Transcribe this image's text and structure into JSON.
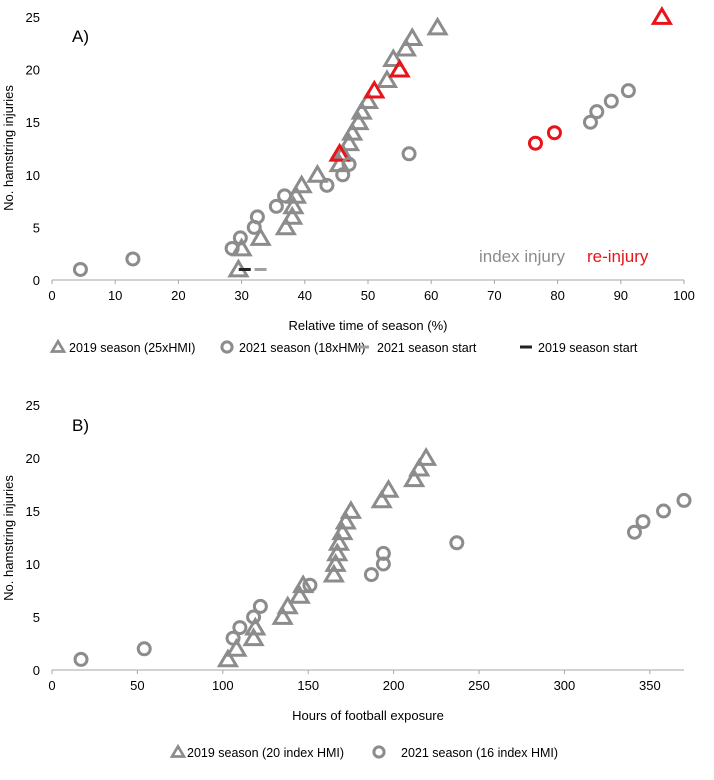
{
  "chart_data": [
    {
      "type": "scatter",
      "panel_label": "A)",
      "xlabel": "Relative time of season (%)",
      "ylabel": "No. hamstring injuries",
      "xlim": [
        0,
        100
      ],
      "ylim": [
        0,
        25
      ],
      "xticks": [
        "0",
        "10",
        "20",
        "30",
        "40",
        "50",
        "60",
        "70",
        "80",
        "90",
        "100"
      ],
      "yticks": [
        "0",
        "5",
        "10",
        "15",
        "20",
        "25"
      ],
      "annotations": {
        "index": "index injury",
        "reinjury": "re-injury"
      },
      "colors": {
        "index": "#8c8c8c",
        "reinjury": "#e8141a",
        "start2021": "#a0a0a0",
        "start2019": "#222222"
      },
      "series": [
        {
          "name": "2019 season (25xHMI)",
          "marker": "triangle",
          "color": "#8c8c8c",
          "x": [
            29.5,
            30,
            33,
            37,
            38,
            38.2,
            38.6,
            39.5,
            42,
            45.5,
            46,
            47,
            47.5,
            48.5,
            49,
            50,
            53,
            54,
            56,
            57,
            61
          ],
          "y": [
            1,
            3,
            4,
            5,
            6,
            7,
            8,
            9,
            10,
            11,
            12,
            13,
            14,
            15,
            16,
            17,
            19,
            21,
            22,
            23,
            24
          ]
        },
        {
          "name": "2019 re-injury",
          "marker": "triangle",
          "color": "#e8141a",
          "x": [
            45.5,
            51,
            55,
            96.5
          ],
          "y": [
            12,
            18,
            20,
            25
          ]
        },
        {
          "name": "2021 season (18xHMI)",
          "marker": "circle",
          "color": "#8c8c8c",
          "x": [
            4.5,
            12.8,
            28.5,
            29.8,
            32,
            32.5,
            35.5,
            36.8,
            43.5,
            46,
            47,
            56.5,
            85.2,
            86.2,
            88.5,
            91.2
          ],
          "y": [
            1,
            2,
            3,
            4,
            5,
            6,
            7,
            8,
            9,
            10,
            11,
            12,
            15,
            16,
            17,
            18
          ]
        },
        {
          "name": "2021 re-injury",
          "marker": "circle",
          "color": "#e8141a",
          "x": [
            76.5,
            79.5
          ],
          "y": [
            13,
            14
          ]
        },
        {
          "name": "2021 season start",
          "marker": "dash",
          "color": "#a0a0a0",
          "x": [
            33
          ],
          "y": [
            1
          ]
        },
        {
          "name": "2019 season start",
          "marker": "dash",
          "color": "#222222",
          "x": [
            30.5
          ],
          "y": [
            1
          ]
        }
      ],
      "legend": [
        {
          "marker": "triangle",
          "label": "2019 season (25xHMI)"
        },
        {
          "marker": "circle",
          "label": "2021 season (18xHMI)"
        },
        {
          "marker": "dash-grey",
          "label": "2021 season start"
        },
        {
          "marker": "dash-black",
          "label": "2019 season start"
        }
      ]
    },
    {
      "type": "scatter",
      "panel_label": "B)",
      "xlabel": "Hours of football exposure",
      "ylabel": "No. hamstring injuries",
      "xlim": [
        0,
        370
      ],
      "ylim": [
        0,
        25
      ],
      "xticks": [
        "0",
        "50",
        "100",
        "150",
        "200",
        "250",
        "300",
        "350"
      ],
      "yticks": [
        "0",
        "5",
        "10",
        "15",
        "20",
        "25"
      ],
      "series": [
        {
          "name": "2019 season (20 index HMI)",
          "marker": "triangle",
          "color": "#8c8c8c",
          "x": [
            103,
            108,
            118,
            119,
            135,
            138,
            145,
            147,
            165,
            166,
            167,
            168,
            170,
            172,
            175,
            193,
            197,
            212,
            215,
            219
          ],
          "y": [
            1,
            2,
            3,
            4,
            5,
            6,
            7,
            8,
            9,
            10,
            11,
            12,
            13,
            14,
            15,
            16,
            17,
            18,
            19,
            20
          ]
        },
        {
          "name": "2021 season (16 index HMI)",
          "marker": "circle",
          "color": "#8c8c8c",
          "x": [
            17,
            54,
            106,
            110,
            118,
            122,
            151,
            187,
            194,
            194,
            237,
            341,
            346,
            358,
            370
          ],
          "y": [
            1,
            2,
            3,
            4,
            5,
            6,
            8,
            9,
            10,
            11,
            12,
            13,
            14,
            15,
            16
          ]
        }
      ],
      "legend": [
        {
          "marker": "triangle",
          "label": "2019 season (20 index HMI)"
        },
        {
          "marker": "circle",
          "label": "2021 season (16 index HMI)"
        }
      ]
    }
  ]
}
